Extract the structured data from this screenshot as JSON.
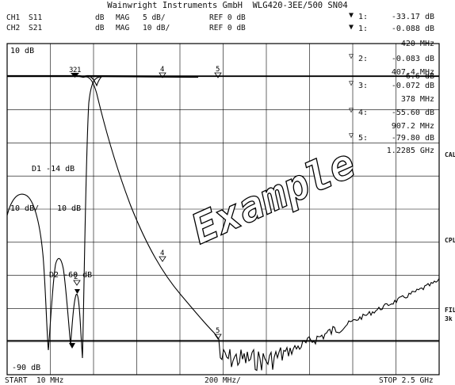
{
  "header": {
    "title": "Wainwright Instruments GmbH  WLG420-3EE/500 SN04",
    "ch1": {
      "label": "CH1",
      "param": "S11",
      "unit": "dB",
      "format": "MAG",
      "scale": "5 dB/",
      "ref": "REF 0 dB"
    },
    "ch2": {
      "label": "CH2",
      "param": "S21",
      "unit": "dB",
      "format": "MAG",
      "scale": "10 dB/",
      "ref": "REF 0 dB"
    }
  },
  "markers": [
    {
      "num": "1:",
      "val1": "-33.17 dB",
      "val2": "-0.088 dB",
      "freq": "420 MHz"
    },
    {
      "num": "2:",
      "val1": "-0.083 dB",
      "freq_a": "407.4 MHz",
      "freq_b": "-6.6 dB"
    },
    {
      "num": "3:",
      "val1": "-0.072 dB",
      "freq": "378 MHz"
    },
    {
      "num": "4:",
      "val1": "-55.60 dB",
      "freq": "907.2 MHz"
    },
    {
      "num": "5:",
      "val1": "-79.80 dB",
      "freq": "1.2285 GHz"
    }
  ],
  "plot": {
    "top_label": "10 dB",
    "bottom_label": "-90 dB",
    "mid_label": "10 dB/",
    "mid_label2": "10 dB",
    "d1_label": "D1 -14 dB",
    "d2_label": "D2 -60 dB",
    "watermark": "Example",
    "marker_labels": [
      "3",
      "2",
      "1",
      "4",
      "5"
    ]
  },
  "footer": {
    "start": "START  10 MHz",
    "mid": "200 MHz/",
    "stop": "STOP 2.5 GHz"
  },
  "side_labels": [
    "CAL",
    "CPL",
    "FIL",
    "3k"
  ]
}
